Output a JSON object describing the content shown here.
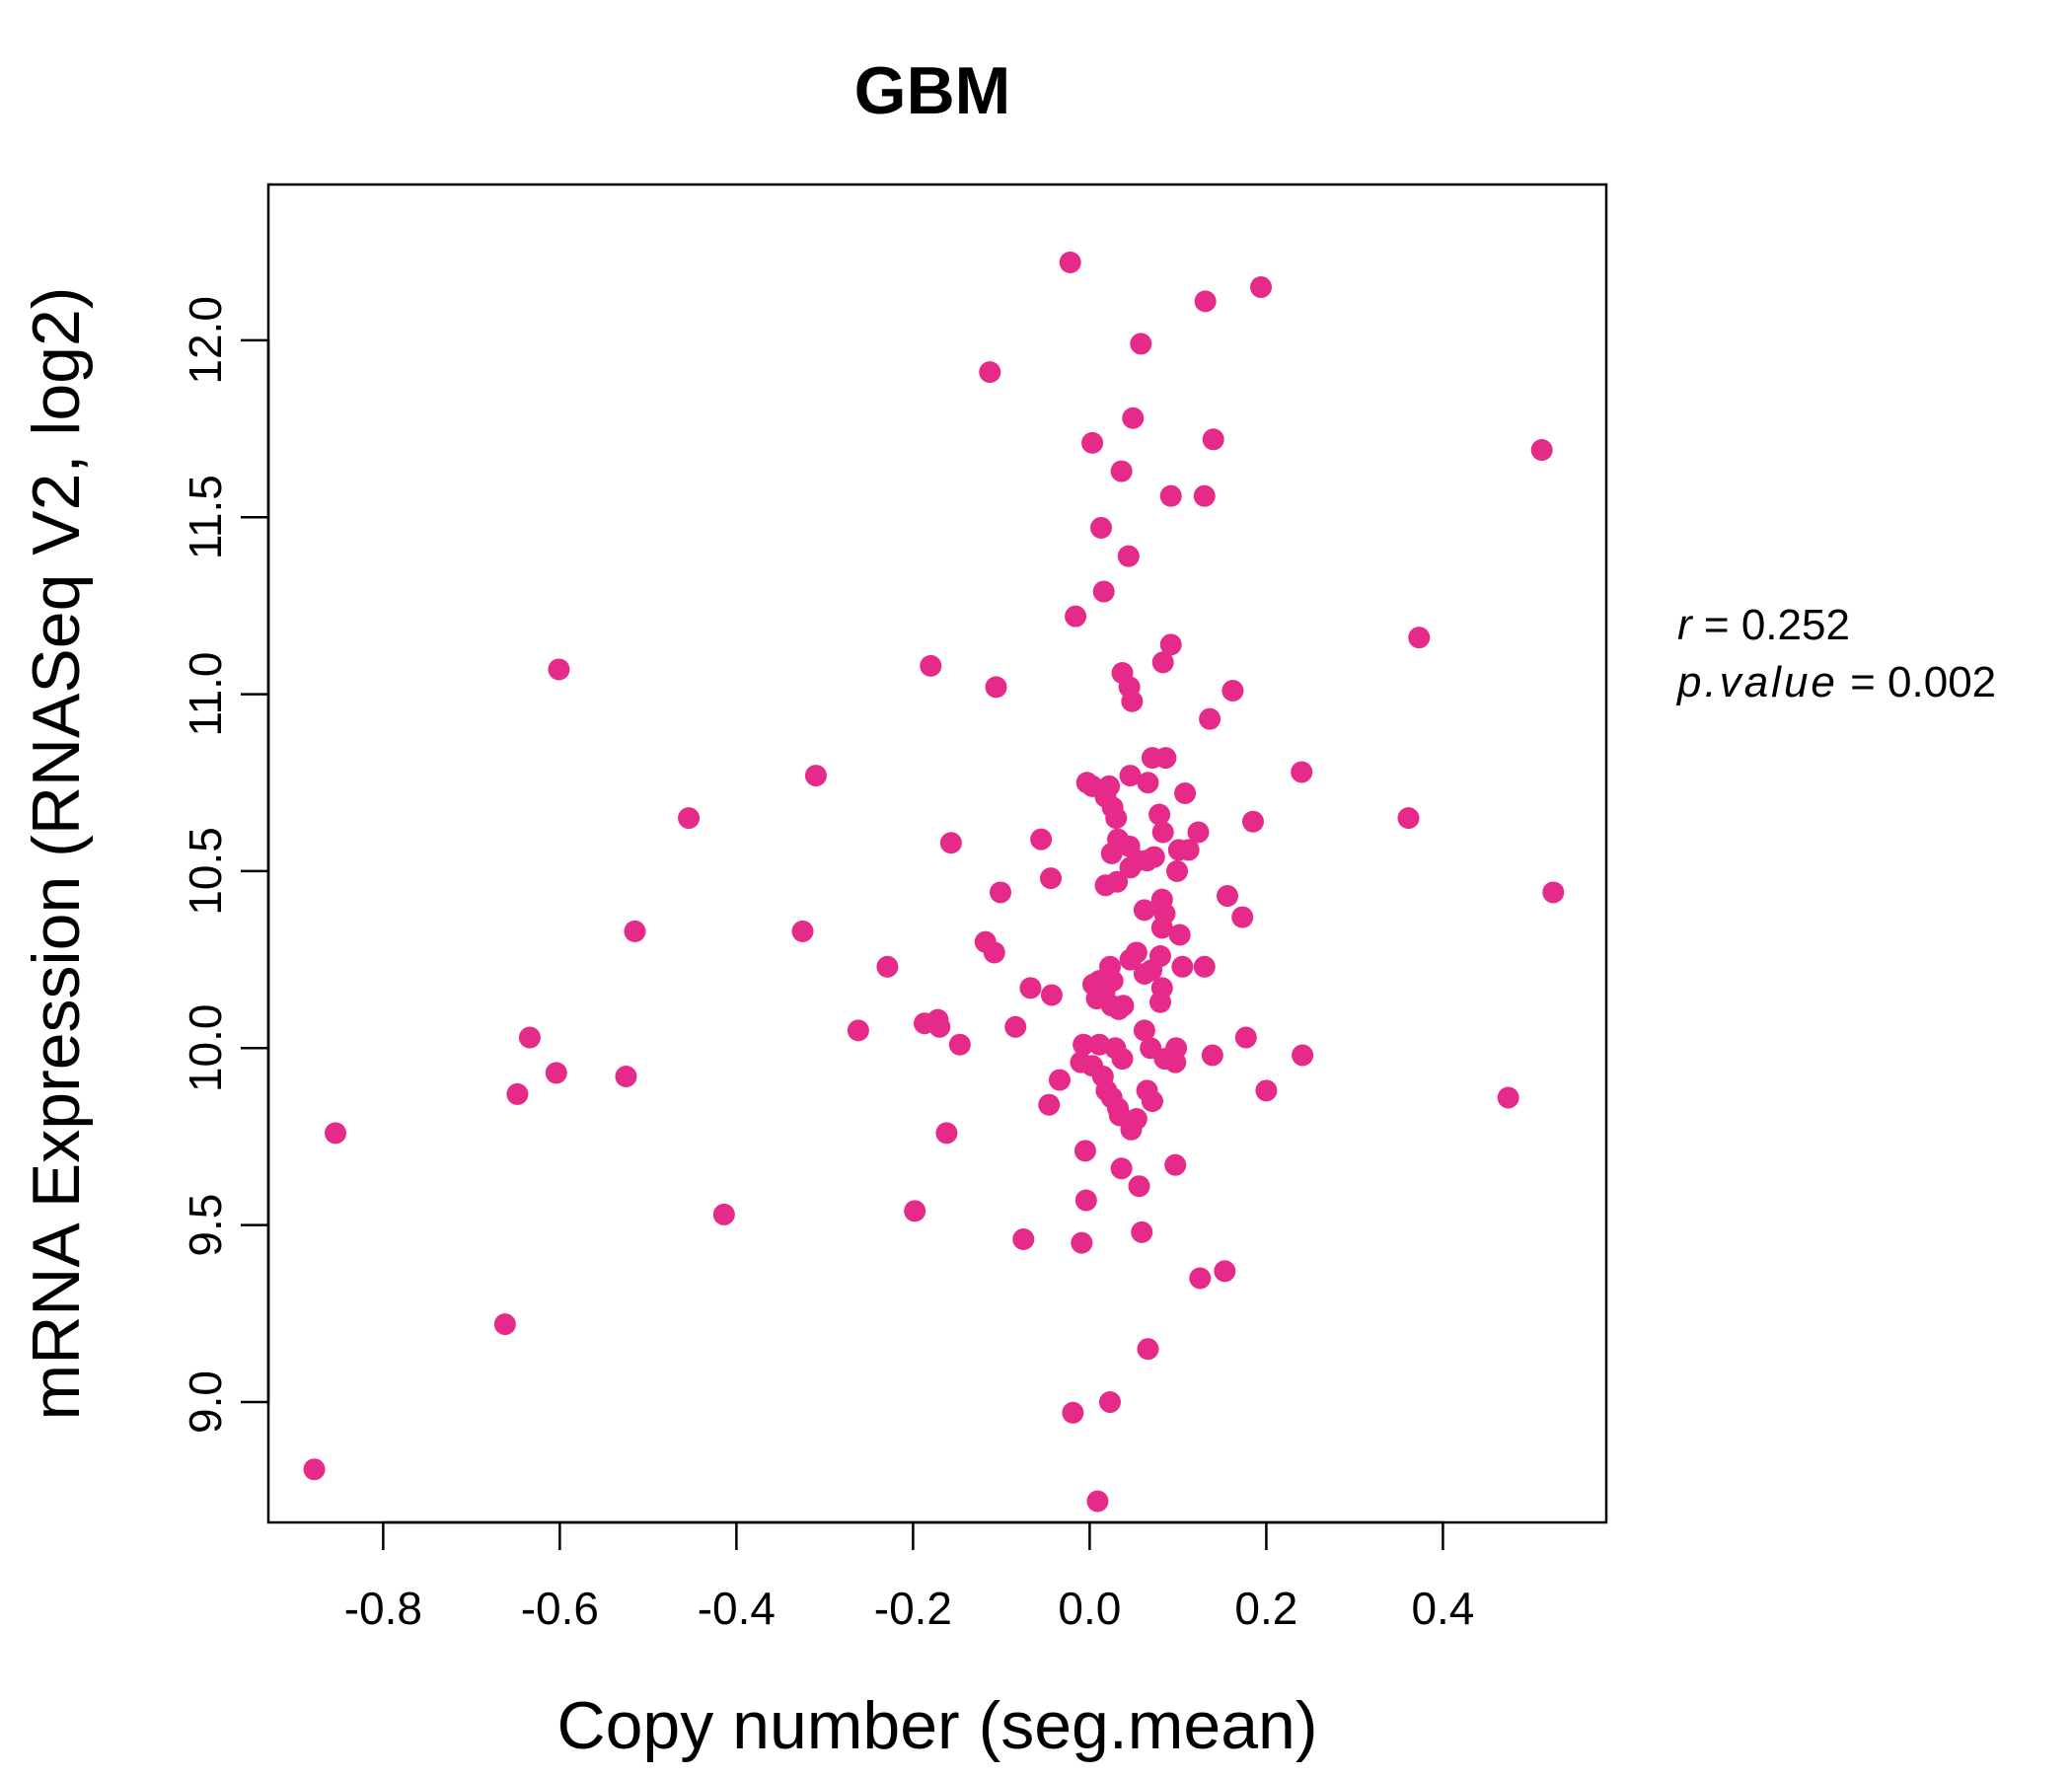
{
  "colors": {
    "accent": "#E62A8A",
    "axis": "#000000",
    "background": "#FFFFFF"
  },
  "chart_data": {
    "type": "scatter",
    "title": "GBM",
    "xlabel": "Copy number (seg.mean)",
    "ylabel": "mRNA Expression (RNASeq V2, log2)",
    "xlim": [
      -0.93,
      0.585
    ],
    "ylim": [
      8.66,
      12.44
    ],
    "xticks": [
      -0.8,
      -0.6,
      -0.4,
      -0.2,
      0.0,
      0.2,
      0.4
    ],
    "xtick_labels": [
      "-0.8",
      "-0.6",
      "-0.4",
      "-0.2",
      "0.0",
      "0.2",
      "0.4"
    ],
    "yticks": [
      9.0,
      9.5,
      10.0,
      10.5,
      11.0,
      11.5,
      12.0
    ],
    "ytick_labels": [
      "9.0",
      "9.5",
      "10.0",
      "10.5",
      "11.0",
      "11.5",
      "12.0"
    ],
    "stats": {
      "r_label": "r",
      "r_value": "0.252",
      "p_label": "p.value",
      "p_value": "0.002"
    },
    "points": [
      [
        -0.022,
        12.22
      ],
      [
        0.194,
        12.15
      ],
      [
        0.131,
        12.11
      ],
      [
        0.058,
        11.99
      ],
      [
        -0.113,
        11.91
      ],
      [
        0.049,
        11.78
      ],
      [
        0.14,
        11.72
      ],
      [
        0.003,
        11.71
      ],
      [
        0.036,
        11.63
      ],
      [
        0.512,
        11.69
      ],
      [
        0.092,
        11.56
      ],
      [
        0.13,
        11.56
      ],
      [
        0.013,
        11.47
      ],
      [
        0.044,
        11.39
      ],
      [
        0.016,
        11.29
      ],
      [
        -0.016,
        11.22
      ],
      [
        0.373,
        11.16
      ],
      [
        0.092,
        11.14
      ],
      [
        -0.18,
        11.08
      ],
      [
        0.083,
        11.09
      ],
      [
        -0.601,
        11.07
      ],
      [
        0.037,
        11.06
      ],
      [
        -0.106,
        11.02
      ],
      [
        0.045,
        11.02
      ],
      [
        0.162,
        11.01
      ],
      [
        0.048,
        10.98
      ],
      [
        0.136,
        10.93
      ],
      [
        0.071,
        10.82
      ],
      [
        0.086,
        10.82
      ],
      [
        0.24,
        10.78
      ],
      [
        -0.31,
        10.77
      ],
      [
        0.046,
        10.77
      ],
      [
        0.066,
        10.75
      ],
      [
        -0.003,
        10.75
      ],
      [
        0.022,
        10.74
      ],
      [
        0.003,
        10.74
      ],
      [
        0.108,
        10.72
      ],
      [
        0.018,
        10.71
      ],
      [
        0.026,
        10.68
      ],
      [
        0.079,
        10.66
      ],
      [
        0.03,
        10.65
      ],
      [
        -0.454,
        10.65
      ],
      [
        0.361,
        10.65
      ],
      [
        0.185,
        10.64
      ],
      [
        0.083,
        10.61
      ],
      [
        0.123,
        10.61
      ],
      [
        0.032,
        10.59
      ],
      [
        -0.157,
        10.58
      ],
      [
        -0.055,
        10.59
      ],
      [
        0.045,
        10.57
      ],
      [
        0.101,
        10.56
      ],
      [
        0.112,
        10.56
      ],
      [
        0.025,
        10.55
      ],
      [
        0.073,
        10.54
      ],
      [
        0.054,
        10.53
      ],
      [
        0.065,
        10.53
      ],
      [
        0.046,
        10.51
      ],
      [
        0.099,
        10.5
      ],
      [
        -0.044,
        10.48
      ],
      [
        0.031,
        10.47
      ],
      [
        0.018,
        10.46
      ],
      [
        -0.101,
        10.44
      ],
      [
        0.525,
        10.44
      ],
      [
        0.156,
        10.43
      ],
      [
        0.082,
        10.42
      ],
      [
        0.062,
        10.39
      ],
      [
        0.085,
        10.38
      ],
      [
        0.173,
        10.37
      ],
      [
        -0.515,
        10.33
      ],
      [
        -0.325,
        10.33
      ],
      [
        0.082,
        10.34
      ],
      [
        0.102,
        10.32
      ],
      [
        -0.118,
        10.3
      ],
      [
        0.053,
        10.27
      ],
      [
        -0.108,
        10.27
      ],
      [
        0.08,
        10.26
      ],
      [
        0.046,
        10.25
      ],
      [
        -0.229,
        10.23
      ],
      [
        0.13,
        10.23
      ],
      [
        0.105,
        10.23
      ],
      [
        0.023,
        10.23
      ],
      [
        0.07,
        10.22
      ],
      [
        0.062,
        10.21
      ],
      [
        0.026,
        10.19
      ],
      [
        0.011,
        10.19
      ],
      [
        0.004,
        10.18
      ],
      [
        -0.067,
        10.17
      ],
      [
        0.082,
        10.17
      ],
      [
        0.017,
        10.16
      ],
      [
        0.008,
        10.14
      ],
      [
        -0.043,
        10.15
      ],
      [
        0.08,
        10.13
      ],
      [
        0.025,
        10.12
      ],
      [
        0.033,
        10.11
      ],
      [
        0.038,
        10.12
      ],
      [
        -0.187,
        10.07
      ],
      [
        -0.172,
        10.08
      ],
      [
        -0.17,
        10.06
      ],
      [
        -0.084,
        10.06
      ],
      [
        0.062,
        10.05
      ],
      [
        -0.262,
        10.05
      ],
      [
        -0.634,
        10.03
      ],
      [
        0.177,
        10.03
      ],
      [
        -0.147,
        10.01
      ],
      [
        -0.007,
        10.01
      ],
      [
        0.011,
        10.01
      ],
      [
        0.029,
        10.0
      ],
      [
        0.069,
        10.0
      ],
      [
        0.098,
        10.0
      ],
      [
        0.037,
        9.97
      ],
      [
        0.085,
        9.97
      ],
      [
        0.139,
        9.98
      ],
      [
        0.241,
        9.98
      ],
      [
        -0.01,
        9.96
      ],
      [
        0.097,
        9.96
      ],
      [
        0.003,
        9.95
      ],
      [
        -0.604,
        9.93
      ],
      [
        -0.525,
        9.92
      ],
      [
        0.015,
        9.92
      ],
      [
        -0.034,
        9.91
      ],
      [
        -0.648,
        9.87
      ],
      [
        0.019,
        9.88
      ],
      [
        0.2,
        9.88
      ],
      [
        0.065,
        9.88
      ],
      [
        0.474,
        9.86
      ],
      [
        0.025,
        9.86
      ],
      [
        0.071,
        9.85
      ],
      [
        0.032,
        9.83
      ],
      [
        -0.046,
        9.84
      ],
      [
        0.053,
        9.8
      ],
      [
        0.034,
        9.81
      ],
      [
        0.047,
        9.77
      ],
      [
        -0.854,
        9.76
      ],
      [
        -0.162,
        9.76
      ],
      [
        -0.005,
        9.71
      ],
      [
        0.097,
        9.67
      ],
      [
        0.036,
        9.66
      ],
      [
        0.056,
        9.61
      ],
      [
        -0.004,
        9.57
      ],
      [
        -0.414,
        9.53
      ],
      [
        -0.198,
        9.54
      ],
      [
        -0.075,
        9.46
      ],
      [
        0.059,
        9.48
      ],
      [
        -0.009,
        9.45
      ],
      [
        0.153,
        9.37
      ],
      [
        0.125,
        9.35
      ],
      [
        -0.662,
        9.22
      ],
      [
        0.066,
        9.15
      ],
      [
        0.023,
        9.0
      ],
      [
        -0.019,
        8.97
      ],
      [
        -0.878,
        8.81
      ],
      [
        0.009,
        8.72
      ]
    ]
  }
}
